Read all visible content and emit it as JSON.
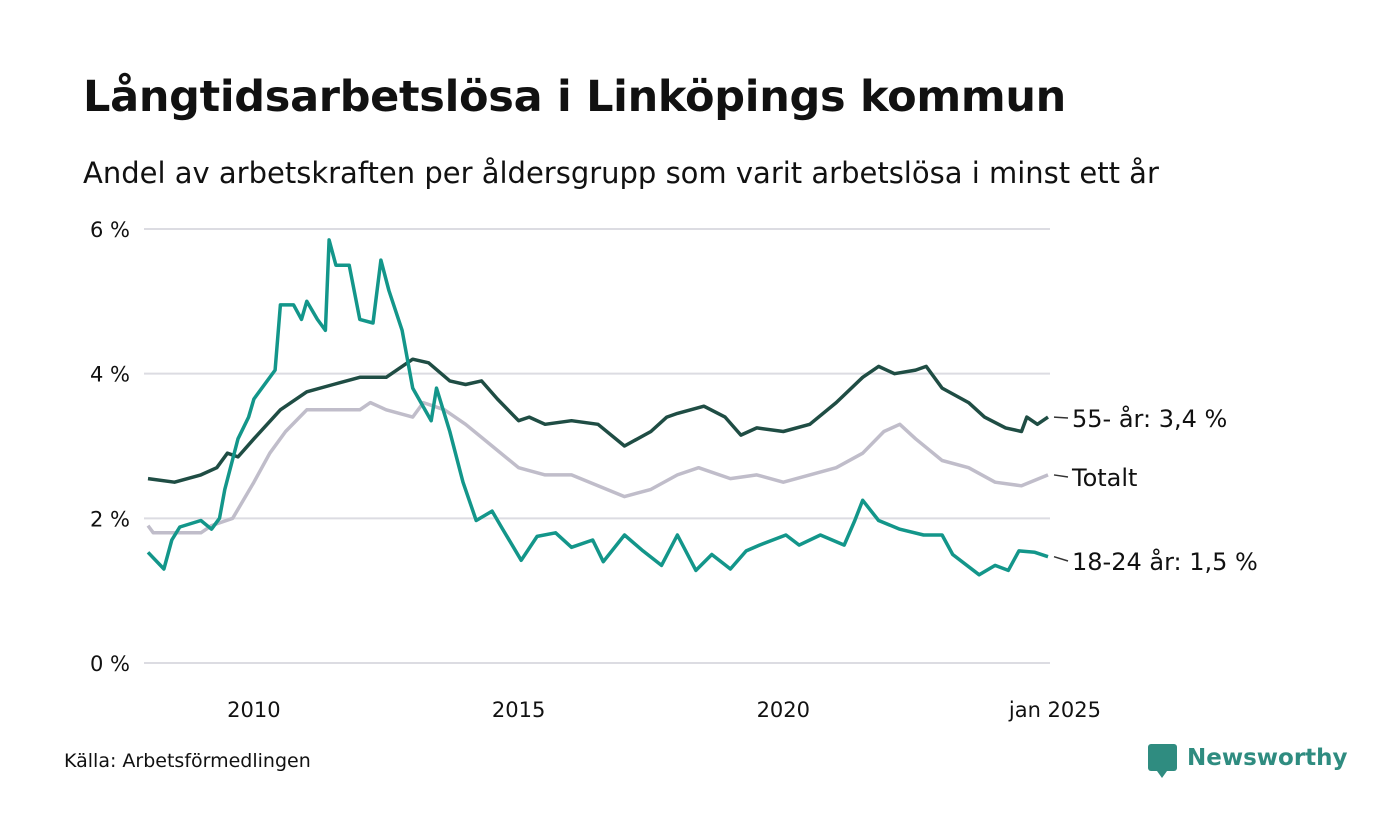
{
  "header": {
    "title": "Långtidsarbetslösa i Linköpings kommun",
    "subtitle": "Andel av arbetskraften per åldersgrupp som varit arbetslösa i minst ett år"
  },
  "footer": {
    "source": "Källa: Arbetsförmedlingen",
    "brand": "Newsworthy"
  },
  "chart_data": {
    "type": "line",
    "title": "Långtidsarbetslösa i Linköpings kommun",
    "ylabel": "",
    "xlabel": "",
    "ylim": [
      0,
      6
    ],
    "xlim": [
      2008.0,
      2025.0
    ],
    "yticks": [
      {
        "v": 0,
        "label": "0 %"
      },
      {
        "v": 2,
        "label": "2 %"
      },
      {
        "v": 4,
        "label": "4 %"
      },
      {
        "v": 6,
        "label": "6 %"
      }
    ],
    "xticks": [
      {
        "v": 2010,
        "label": "2010"
      },
      {
        "v": 2015,
        "label": "2015"
      },
      {
        "v": 2020,
        "label": "2020"
      },
      {
        "v": 2025,
        "label": "jan 2025"
      }
    ],
    "grid": true,
    "colors": {
      "s55": "#1f4d44",
      "total": "#c0bdca",
      "s1824": "#13968a",
      "grid": "#dcdce2"
    },
    "series": [
      {
        "key": "total",
        "name": "Totalt",
        "label": "Totalt",
        "color": "#c0bdca",
        "points": [
          [
            2008.0,
            1.9
          ],
          [
            2008.1,
            1.8
          ],
          [
            2009.0,
            1.8
          ],
          [
            2009.2,
            1.9
          ],
          [
            2009.6,
            2.0
          ],
          [
            2010.0,
            2.5
          ],
          [
            2010.3,
            2.9
          ],
          [
            2010.6,
            3.2
          ],
          [
            2011.0,
            3.5
          ],
          [
            2012.0,
            3.5
          ],
          [
            2012.2,
            3.6
          ],
          [
            2012.5,
            3.5
          ],
          [
            2013.0,
            3.4
          ],
          [
            2013.2,
            3.6
          ],
          [
            2013.6,
            3.5
          ],
          [
            2014.0,
            3.3
          ],
          [
            2014.5,
            3.0
          ],
          [
            2015.0,
            2.7
          ],
          [
            2015.5,
            2.6
          ],
          [
            2016.0,
            2.6
          ],
          [
            2016.5,
            2.45
          ],
          [
            2017.0,
            2.3
          ],
          [
            2017.5,
            2.4
          ],
          [
            2018.0,
            2.6
          ],
          [
            2018.4,
            2.7
          ],
          [
            2019.0,
            2.55
          ],
          [
            2019.5,
            2.6
          ],
          [
            2020.0,
            2.5
          ],
          [
            2020.5,
            2.6
          ],
          [
            2021.0,
            2.7
          ],
          [
            2021.5,
            2.9
          ],
          [
            2021.9,
            3.2
          ],
          [
            2022.2,
            3.3
          ],
          [
            2022.5,
            3.1
          ],
          [
            2023.0,
            2.8
          ],
          [
            2023.5,
            2.7
          ],
          [
            2024.0,
            2.5
          ],
          [
            2024.5,
            2.45
          ],
          [
            2025.0,
            2.6
          ]
        ]
      },
      {
        "key": "s55",
        "name": "55- år",
        "label": "55- år: 3,4 %",
        "color": "#1f4d44",
        "points": [
          [
            2008.0,
            2.55
          ],
          [
            2008.5,
            2.5
          ],
          [
            2009.0,
            2.6
          ],
          [
            2009.3,
            2.7
          ],
          [
            2009.5,
            2.9
          ],
          [
            2009.7,
            2.85
          ],
          [
            2010.0,
            3.1
          ],
          [
            2010.5,
            3.5
          ],
          [
            2011.0,
            3.75
          ],
          [
            2011.5,
            3.85
          ],
          [
            2012.0,
            3.95
          ],
          [
            2012.5,
            3.95
          ],
          [
            2013.0,
            4.2
          ],
          [
            2013.3,
            4.15
          ],
          [
            2013.7,
            3.9
          ],
          [
            2014.0,
            3.85
          ],
          [
            2014.3,
            3.9
          ],
          [
            2014.6,
            3.65
          ],
          [
            2015.0,
            3.35
          ],
          [
            2015.2,
            3.4
          ],
          [
            2015.5,
            3.3
          ],
          [
            2016.0,
            3.35
          ],
          [
            2016.5,
            3.3
          ],
          [
            2017.0,
            3.0
          ],
          [
            2017.5,
            3.2
          ],
          [
            2017.8,
            3.4
          ],
          [
            2018.0,
            3.45
          ],
          [
            2018.5,
            3.55
          ],
          [
            2018.9,
            3.4
          ],
          [
            2019.2,
            3.15
          ],
          [
            2019.5,
            3.25
          ],
          [
            2020.0,
            3.2
          ],
          [
            2020.5,
            3.3
          ],
          [
            2021.0,
            3.6
          ],
          [
            2021.5,
            3.95
          ],
          [
            2021.8,
            4.1
          ],
          [
            2022.1,
            4.0
          ],
          [
            2022.5,
            4.05
          ],
          [
            2022.7,
            4.1
          ],
          [
            2023.0,
            3.8
          ],
          [
            2023.5,
            3.6
          ],
          [
            2023.8,
            3.4
          ],
          [
            2024.2,
            3.25
          ],
          [
            2024.5,
            3.2
          ],
          [
            2024.6,
            3.4
          ],
          [
            2024.8,
            3.3
          ],
          [
            2025.0,
            3.4
          ]
        ]
      },
      {
        "key": "s1824",
        "name": "18-24 år",
        "label": "18-24 år: 1,5 %",
        "color": "#13968a",
        "points": [
          [
            2008.0,
            1.53
          ],
          [
            2008.3,
            1.3
          ],
          [
            2008.45,
            1.7
          ],
          [
            2008.6,
            1.88
          ],
          [
            2009.0,
            1.97
          ],
          [
            2009.2,
            1.85
          ],
          [
            2009.35,
            2.0
          ],
          [
            2009.45,
            2.4
          ],
          [
            2009.7,
            3.1
          ],
          [
            2009.9,
            3.4
          ],
          [
            2010.0,
            3.65
          ],
          [
            2010.4,
            4.05
          ],
          [
            2010.5,
            4.95
          ],
          [
            2010.75,
            4.95
          ],
          [
            2010.9,
            4.75
          ],
          [
            2011.0,
            5.0
          ],
          [
            2011.2,
            4.75
          ],
          [
            2011.35,
            4.6
          ],
          [
            2011.42,
            5.85
          ],
          [
            2011.55,
            5.5
          ],
          [
            2011.8,
            5.5
          ],
          [
            2012.0,
            4.75
          ],
          [
            2012.25,
            4.7
          ],
          [
            2012.4,
            5.57
          ],
          [
            2012.55,
            5.15
          ],
          [
            2012.8,
            4.6
          ],
          [
            2013.0,
            3.8
          ],
          [
            2013.35,
            3.35
          ],
          [
            2013.45,
            3.8
          ],
          [
            2013.7,
            3.2
          ],
          [
            2013.95,
            2.5
          ],
          [
            2014.2,
            1.97
          ],
          [
            2014.5,
            2.1
          ],
          [
            2014.7,
            1.85
          ],
          [
            2015.05,
            1.42
          ],
          [
            2015.35,
            1.75
          ],
          [
            2015.7,
            1.8
          ],
          [
            2016.0,
            1.6
          ],
          [
            2016.4,
            1.7
          ],
          [
            2016.6,
            1.4
          ],
          [
            2017.0,
            1.77
          ],
          [
            2017.35,
            1.55
          ],
          [
            2017.7,
            1.35
          ],
          [
            2018.0,
            1.77
          ],
          [
            2018.35,
            1.28
          ],
          [
            2018.65,
            1.5
          ],
          [
            2019.0,
            1.3
          ],
          [
            2019.3,
            1.55
          ],
          [
            2019.55,
            1.63
          ],
          [
            2020.05,
            1.77
          ],
          [
            2020.3,
            1.63
          ],
          [
            2020.7,
            1.77
          ],
          [
            2021.15,
            1.63
          ],
          [
            2021.35,
            1.97
          ],
          [
            2021.5,
            2.25
          ],
          [
            2021.8,
            1.97
          ],
          [
            2022.2,
            1.85
          ],
          [
            2022.65,
            1.77
          ],
          [
            2023.0,
            1.77
          ],
          [
            2023.2,
            1.5
          ],
          [
            2023.7,
            1.22
          ],
          [
            2024.0,
            1.35
          ],
          [
            2024.25,
            1.28
          ],
          [
            2024.45,
            1.55
          ],
          [
            2024.75,
            1.53
          ],
          [
            2025.0,
            1.47
          ]
        ]
      }
    ]
  }
}
